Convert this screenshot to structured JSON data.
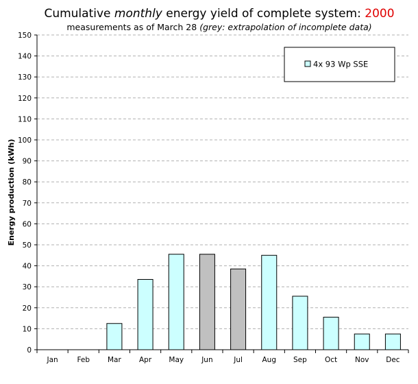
{
  "header": {
    "title_pre": "Cumulative ",
    "title_em": "monthly",
    "title_post": " energy yield of complete system: ",
    "title_year": "2000",
    "subtitle_pre": "measurements as of March 28 ",
    "subtitle_em": "(grey: extrapolation of incomplete data)"
  },
  "colors": {
    "measured": "#ccffff",
    "extrapolated": "#c0c0c0",
    "title_year": "#e00000"
  },
  "chart_data": {
    "type": "bar",
    "title": "Cumulative monthly energy yield of complete system: 2000",
    "subtitle": "measurements as of March 28 (grey: extrapolation of incomplete data)",
    "xlabel": "",
    "ylabel": "Energy production (kWh)",
    "ylim": [
      0,
      150
    ],
    "yticks": [
      0,
      10,
      20,
      30,
      40,
      50,
      60,
      70,
      80,
      90,
      100,
      110,
      120,
      130,
      140,
      150
    ],
    "grid": true,
    "legend_position": "top-right",
    "categories": [
      "Jan",
      "Feb",
      "Mar",
      "Apr",
      "May",
      "Jun",
      "Jul",
      "Aug",
      "Sep",
      "Oct",
      "Nov",
      "Dec"
    ],
    "series": [
      {
        "name": "4x 93 Wp SSE",
        "values": [
          0,
          0,
          12.5,
          33.5,
          45.5,
          45.5,
          38.5,
          45,
          25.5,
          15.5,
          7.5,
          7.5
        ],
        "extrapolated": [
          false,
          false,
          false,
          false,
          false,
          true,
          true,
          false,
          false,
          false,
          false,
          false
        ]
      }
    ]
  }
}
